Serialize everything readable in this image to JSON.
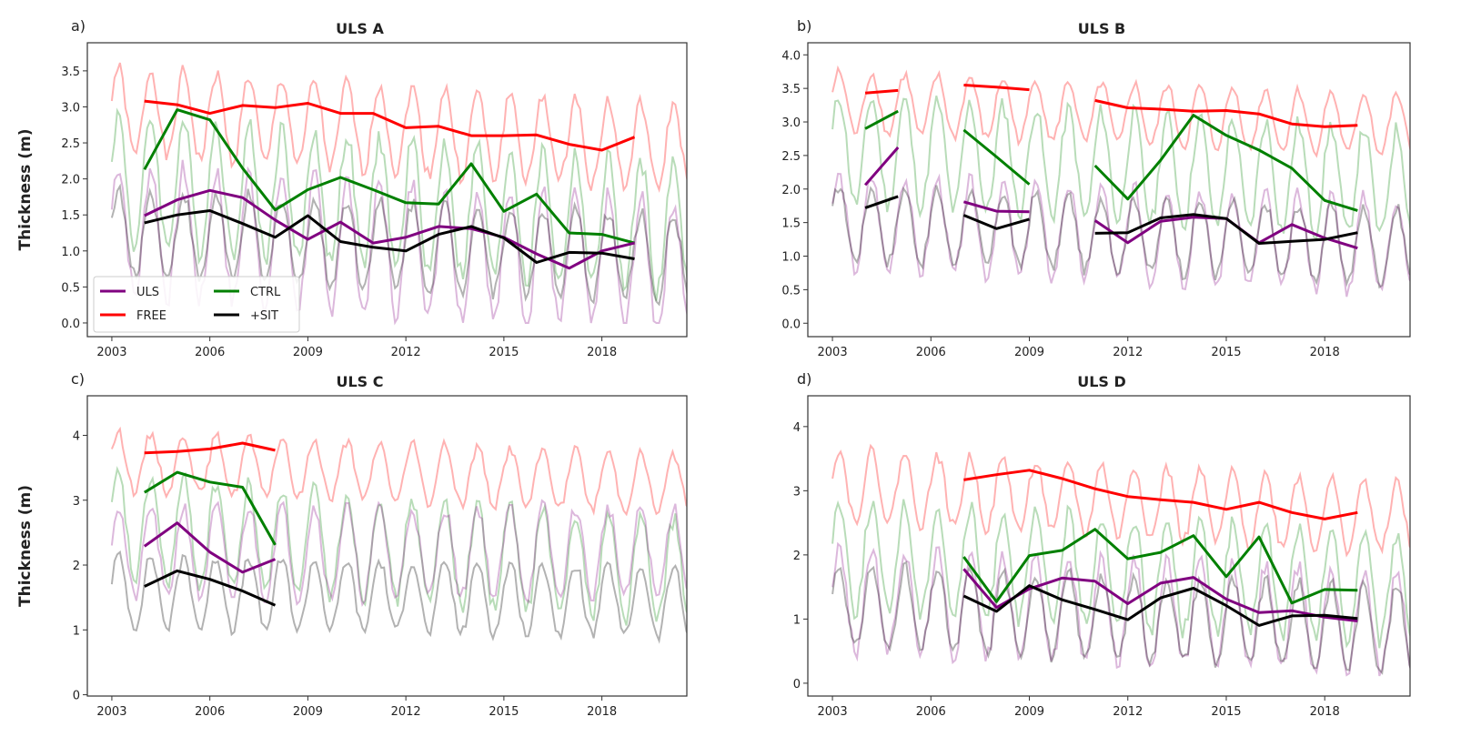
{
  "colors": {
    "ULS": "#800080",
    "FREE": "#ff0000",
    "CTRL": "#008000",
    "+SIT": "#000000"
  },
  "chart_data": [
    {
      "type": "line",
      "panel_label": "a)",
      "title": "ULS A",
      "ylabel": "Thickness (m)",
      "xlabel": "",
      "xlim": [
        2002.25,
        2020.6
      ],
      "ylim": [
        -0.19,
        3.89
      ],
      "xticks": [
        2003,
        2006,
        2009,
        2012,
        2015,
        2018
      ],
      "yticks": [
        "0.0",
        "0.5",
        "1.0",
        "1.5",
        "2.0",
        "2.5",
        "3.0",
        "3.5"
      ],
      "legend": {
        "placement": "lower-left",
        "entries": [
          "ULS",
          "FREE",
          "CTRL",
          "+SIT"
        ]
      },
      "x": [
        2004,
        2005,
        2006,
        2007,
        2008,
        2009,
        2010,
        2011,
        2012,
        2013,
        2014,
        2015,
        2016,
        2017,
        2018,
        2019
      ],
      "series": [
        {
          "name": "FREE",
          "values": [
            3.08,
            3.03,
            2.91,
            3.02,
            2.99,
            3.05,
            2.91,
            2.91,
            2.71,
            2.73,
            2.6,
            2.6,
            2.61,
            2.48,
            2.4,
            2.58
          ]
        },
        {
          "name": "CTRL",
          "values": [
            2.13,
            2.96,
            2.82,
            2.15,
            1.57,
            1.85,
            2.02,
            1.85,
            1.67,
            1.65,
            2.21,
            1.55,
            1.79,
            1.25,
            1.23,
            1.11
          ]
        },
        {
          "name": "ULS",
          "values": [
            1.49,
            1.71,
            1.84,
            1.74,
            1.43,
            1.16,
            1.4,
            1.11,
            1.19,
            1.34,
            1.31,
            1.19,
            0.96,
            0.76,
            1.0,
            1.11
          ]
        },
        {
          "name": "+SIT",
          "values": [
            1.39,
            1.5,
            1.56,
            1.38,
            1.19,
            1.49,
            1.13,
            1.05,
            1.0,
            1.23,
            1.34,
            1.18,
            0.84,
            0.98,
            0.97,
            0.89
          ]
        }
      ],
      "monthly_background": {
        "FREE": {
          "mean": 2.95,
          "amp": 0.6,
          "trend": -0.03
        },
        "CTRL": {
          "mean": 2.0,
          "amp": 0.9,
          "trend": -0.04
        },
        "ULS": {
          "mean": 1.3,
          "amp": 0.9,
          "trend": -0.03
        },
        "+SIT": {
          "mean": 1.25,
          "amp": 0.6,
          "trend": -0.02
        }
      }
    },
    {
      "type": "line",
      "panel_label": "b)",
      "title": "ULS B",
      "ylabel": "",
      "xlabel": "",
      "xlim": [
        2002.25,
        2020.6
      ],
      "ylim": [
        -0.2,
        4.18
      ],
      "xticks": [
        2003,
        2006,
        2009,
        2012,
        2015,
        2018
      ],
      "yticks": [
        "0.0",
        "0.5",
        "1.0",
        "1.5",
        "2.0",
        "2.5",
        "3.0",
        "3.5",
        "4.0"
      ],
      "x": [
        2004,
        2005,
        2006,
        2007,
        2008,
        2009,
        2010,
        2011,
        2012,
        2013,
        2014,
        2015,
        2016,
        2017,
        2018,
        2019
      ],
      "series": [
        {
          "name": "FREE",
          "values": [
            3.43,
            3.47,
            null,
            3.55,
            3.52,
            3.48,
            null,
            3.32,
            3.21,
            3.19,
            3.16,
            3.17,
            3.12,
            2.97,
            2.93,
            2.95
          ]
        },
        {
          "name": "CTRL",
          "values": [
            2.9,
            3.16,
            null,
            2.88,
            2.48,
            2.07,
            null,
            2.35,
            1.85,
            2.43,
            3.1,
            2.8,
            2.58,
            2.31,
            1.83,
            1.68
          ]
        },
        {
          "name": "ULS",
          "values": [
            2.06,
            2.62,
            null,
            1.81,
            1.67,
            1.66,
            null,
            1.53,
            1.2,
            1.52,
            1.58,
            1.56,
            1.2,
            1.47,
            1.27,
            1.12
          ]
        },
        {
          "name": "+SIT",
          "values": [
            1.72,
            1.89,
            null,
            1.61,
            1.41,
            1.55,
            null,
            1.34,
            1.35,
            1.57,
            1.62,
            1.56,
            1.19,
            1.22,
            1.25,
            1.35
          ]
        }
      ],
      "monthly_background": {
        "FREE": {
          "mean": 3.3,
          "amp": 0.45,
          "trend": -0.02
        },
        "CTRL": {
          "mean": 2.6,
          "amp": 0.8,
          "trend": -0.03
        },
        "ULS": {
          "mean": 1.5,
          "amp": 0.7,
          "trend": -0.02
        },
        "+SIT": {
          "mean": 1.5,
          "amp": 0.55,
          "trend": -0.02
        }
      }
    },
    {
      "type": "line",
      "panel_label": "c)",
      "title": "ULS C",
      "ylabel": "Thickness (m)",
      "xlabel": "",
      "xlim": [
        2002.25,
        2020.6
      ],
      "ylim": [
        -0.02,
        4.61
      ],
      "xticks": [
        2003,
        2006,
        2009,
        2012,
        2015,
        2018
      ],
      "yticks": [
        "0",
        "1",
        "2",
        "3",
        "4"
      ],
      "x": [
        2004,
        2005,
        2006,
        2007,
        2008
      ],
      "series": [
        {
          "name": "FREE",
          "values": [
            3.73,
            3.75,
            3.79,
            3.88,
            3.77
          ]
        },
        {
          "name": "CTRL",
          "values": [
            3.12,
            3.43,
            3.28,
            3.2,
            2.31
          ]
        },
        {
          "name": "ULS",
          "values": [
            2.29,
            2.65,
            2.2,
            1.89,
            2.09
          ]
        },
        {
          "name": "+SIT",
          "values": [
            1.67,
            1.91,
            1.78,
            1.6,
            1.38
          ]
        }
      ],
      "monthly_background": {
        "FREE": {
          "mean": 3.6,
          "amp": 0.45,
          "trend": -0.02
        },
        "CTRL": {
          "mean": 2.6,
          "amp": 0.8,
          "trend": -0.04
        },
        "ULS": {
          "mean": 2.2,
          "amp": 0.7,
          "trend": 0
        },
        "+SIT": {
          "mean": 1.6,
          "amp": 0.55,
          "trend": -0.01
        }
      }
    },
    {
      "type": "line",
      "panel_label": "d)",
      "title": "ULS D",
      "ylabel": "",
      "xlabel": "",
      "xlim": [
        2002.25,
        2020.6
      ],
      "ylim": [
        -0.2,
        4.48
      ],
      "xticks": [
        2003,
        2006,
        2009,
        2012,
        2015,
        2018
      ],
      "yticks": [
        "0",
        "1",
        "2",
        "3",
        "4"
      ],
      "x": [
        2007,
        2008,
        2009,
        2010,
        2011,
        2012,
        2013,
        2014,
        2015,
        2016,
        2017,
        2018,
        2019
      ],
      "series": [
        {
          "name": "FREE",
          "values": [
            3.17,
            3.25,
            3.32,
            3.19,
            3.03,
            2.91,
            2.86,
            2.82,
            2.71,
            2.82,
            2.66,
            2.56,
            2.66
          ]
        },
        {
          "name": "CTRL",
          "values": [
            1.97,
            1.27,
            1.99,
            2.07,
            2.4,
            1.94,
            2.04,
            2.3,
            1.66,
            2.28,
            1.25,
            1.46,
            1.45
          ]
        },
        {
          "name": "ULS",
          "values": [
            1.78,
            1.18,
            1.47,
            1.64,
            1.59,
            1.24,
            1.56,
            1.65,
            1.31,
            1.1,
            1.13,
            1.03,
            0.97
          ]
        },
        {
          "name": "+SIT",
          "values": [
            1.36,
            1.12,
            1.52,
            1.3,
            1.15,
            0.99,
            1.33,
            1.48,
            1.21,
            0.9,
            1.05,
            1.06,
            1.01
          ]
        }
      ],
      "monthly_background": {
        "FREE": {
          "mean": 3.1,
          "amp": 0.55,
          "trend": -0.03
        },
        "CTRL": {
          "mean": 2.0,
          "amp": 0.85,
          "trend": -0.03
        },
        "ULS": {
          "mean": 1.3,
          "amp": 0.8,
          "trend": -0.02
        },
        "+SIT": {
          "mean": 1.2,
          "amp": 0.65,
          "trend": -0.02
        }
      }
    }
  ]
}
